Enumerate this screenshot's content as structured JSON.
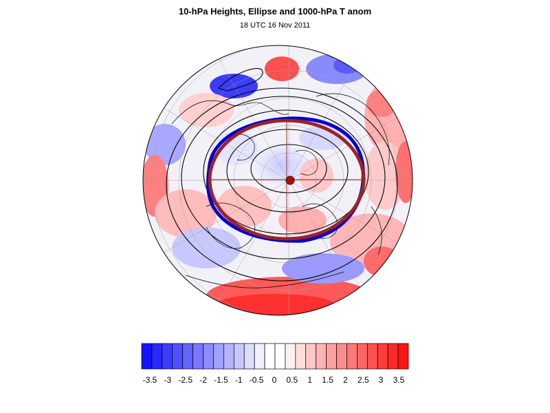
{
  "figure": {
    "title": "10-hPa Heights, Ellipse and 1000-hPa T anom",
    "subtitle": "18 UTC 16 Nov 2011"
  },
  "map": {
    "projection": "polar-stereographic-north",
    "features": [
      "coastlines",
      "graticule",
      "10-hPa height contours",
      "fitted vortex ellipse",
      "vortex edge contour",
      "vortex center marker"
    ],
    "colors": {
      "ellipse": "#9b2226",
      "vortex_edge_contour": "#0000cc",
      "height_contours": "#000000",
      "center_marker": "#a01010"
    }
  },
  "colorbar": {
    "tick_labels": [
      "-3.5",
      "-3",
      "-2.5",
      "-2",
      "-1.5",
      "-1",
      "-0.5",
      "0",
      "0.5",
      "1",
      "1.5",
      "2",
      "2.5",
      "3",
      "3.5"
    ],
    "colors": [
      "#1414ff",
      "#2828ff",
      "#3c3cff",
      "#5050ff",
      "#6464ff",
      "#7878ff",
      "#8c8cff",
      "#a0a0ff",
      "#b4b4ff",
      "#c8c8ff",
      "#dcdcff",
      "#f0f0ff",
      "#ffffff",
      "#ffffff",
      "#fff0f0",
      "#ffdcdc",
      "#ffc8c8",
      "#ffb4b4",
      "#ffa0a0",
      "#ff8c8c",
      "#ff7878",
      "#ff6464",
      "#ff5050",
      "#ff3c3c",
      "#ff2828",
      "#ff1414"
    ]
  }
}
